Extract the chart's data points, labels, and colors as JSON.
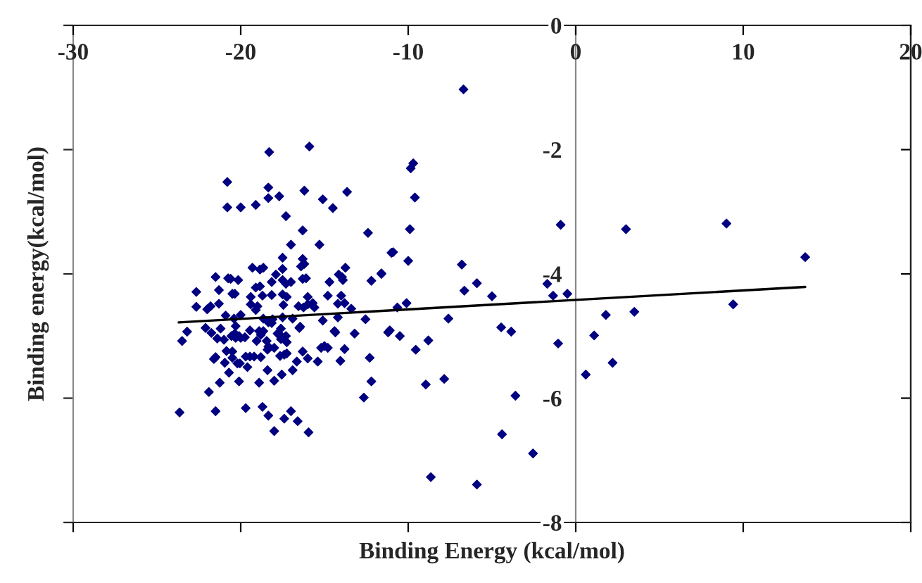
{
  "chart_data": {
    "type": "scatter",
    "xlabel": "Binding Energy (kcal/mol)",
    "ylabel": "Binding energy(kcal/mol)",
    "xlim": [
      -30,
      20
    ],
    "ylim": [
      -8,
      0
    ],
    "xticks": [
      {
        "value": -30,
        "label": "-30"
      },
      {
        "value": -20,
        "label": "-20"
      },
      {
        "value": -10,
        "label": "-10"
      },
      0,
      10,
      20
    ],
    "yticks": [
      {
        "value": -8,
        "label": "-8"
      },
      {
        "value": -6,
        "label": "-6"
      },
      {
        "value": -4,
        "label": "-4"
      },
      {
        "value": -2,
        "label": "-2"
      },
      0
    ],
    "grid": false,
    "marker": "diamond",
    "series": [
      {
        "color": "#000080",
        "x": [
          -6.7,
          -9.7,
          -9.85,
          -9.6,
          -9.9,
          -0.9,
          3.0,
          9.0,
          13.7,
          -10.9,
          -10.0,
          -6.8,
          -11.6,
          -6.65,
          -5.9,
          -5.0,
          -1.7,
          -1.35,
          -0.5,
          -10.65,
          -10.1,
          -7.6,
          -11.2,
          -11.1,
          -10.5,
          -9.55,
          -8.8,
          -4.45,
          -3.85,
          -1.05,
          1.8,
          3.5,
          9.4,
          1.1,
          2.2,
          0.6,
          -8.95,
          -7.85,
          -3.6,
          -4.4,
          -2.55,
          -8.65,
          -5.9,
          -18.3,
          -15.9,
          -20.8,
          -18.35,
          -16.2,
          -13.65,
          -17.7,
          -15.1,
          -20.8,
          -20.0,
          -19.1,
          -18.35,
          -14.5,
          -17.3,
          -16.3,
          -12.4,
          -17.0,
          -15.3,
          -11.0,
          -17.5,
          -16.3,
          -16.2,
          -16.4,
          -19.3,
          -18.85,
          -18.65,
          -17.5,
          -17.9,
          -13.75,
          -11.6,
          -21.5,
          -20.75,
          -20.6,
          -20.15,
          -18.15,
          -17.5,
          -17.3,
          -17.0,
          -16.3,
          -16.1,
          -14.15,
          -13.95,
          -13.9,
          -14.7,
          -12.2,
          -18.85,
          -19.1,
          -21.3,
          -22.65,
          -20.5,
          -20.35,
          -19.4,
          -18.7,
          -18.15,
          -17.5,
          -17.25,
          -16.0,
          -14.8,
          -14.0,
          -22.65,
          -22.0,
          -21.8,
          -21.3,
          -19.4,
          -19.0,
          -17.45,
          -16.55,
          -16.25,
          -16.0,
          -15.7,
          -15.6,
          -14.2,
          -13.4,
          -13.8,
          -19.1,
          -20.9,
          -20.4,
          -20.0,
          -18.65,
          -18.1,
          -17.5,
          -16.9,
          -15.1,
          -14.2,
          -12.55,
          -23.2,
          -22.1,
          -21.2,
          -20.35,
          -20.1,
          -18.9,
          -17.8,
          -16.5,
          -14.4,
          -13.2,
          -23.5,
          -21.75,
          -21.4,
          -21.0,
          -20.3,
          -20.55,
          -20.3,
          -20.0,
          -19.75,
          -19.45,
          -19.05,
          -18.8,
          -18.65,
          -18.35,
          -18.15,
          -18.45,
          -18.35,
          -18.0,
          -17.6,
          -17.65,
          -17.6,
          -17.3,
          -17.25,
          -16.45,
          -14.35,
          -20.85,
          -20.5,
          -21.6,
          -21.5,
          -20.95,
          -20.5,
          -20.2,
          -20.05,
          -19.7,
          -19.45,
          -19.2,
          -19.6,
          -18.8,
          -18.4,
          -17.65,
          -17.4,
          -17.25,
          -16.9,
          -16.65,
          -16.3,
          -16.0,
          -15.4,
          -15.2,
          -15.0,
          -14.8,
          -13.8,
          -14.05,
          -20.7,
          -18.4,
          -17.55,
          -21.25,
          -20.1,
          -18.9,
          -18.0,
          -21.9,
          -23.65,
          -21.5,
          -19.7,
          -18.7,
          -18.35,
          -17.0,
          -17.4,
          -16.6,
          -18.0,
          -15.95,
          -12.3,
          -12.2,
          -12.65
        ],
        "values": [
          -1.03,
          -2.22,
          -2.3,
          -2.77,
          -3.28,
          -3.21,
          -3.28,
          -3.19,
          -3.73,
          -3.65,
          -3.79,
          -3.85,
          -3.99,
          -4.27,
          -4.15,
          -4.36,
          -4.16,
          -4.35,
          -4.32,
          -4.54,
          -4.47,
          -4.72,
          -4.94,
          -4.91,
          -5.0,
          -5.22,
          -5.07,
          -4.86,
          -4.93,
          -5.12,
          -4.66,
          -4.61,
          -4.49,
          -4.99,
          -5.43,
          -5.62,
          -5.78,
          -5.69,
          -5.96,
          -6.58,
          -6.89,
          -7.27,
          -7.39,
          -2.04,
          -1.95,
          -2.52,
          -2.61,
          -2.66,
          -2.68,
          -2.75,
          -2.8,
          -2.93,
          -2.93,
          -2.89,
          -2.78,
          -2.94,
          -3.07,
          -3.3,
          -3.34,
          -3.53,
          -3.53,
          -3.66,
          -3.74,
          -3.76,
          -3.84,
          -3.88,
          -3.9,
          -3.93,
          -3.9,
          -3.92,
          -4.01,
          -3.9,
          -4.0,
          -4.05,
          -4.07,
          -4.08,
          -4.1,
          -4.13,
          -4.1,
          -4.16,
          -4.13,
          -4.08,
          -4.07,
          -4.01,
          -4.05,
          -4.1,
          -4.13,
          -4.11,
          -4.2,
          -4.22,
          -4.26,
          -4.29,
          -4.32,
          -4.32,
          -4.37,
          -4.35,
          -4.34,
          -4.33,
          -4.37,
          -4.37,
          -4.35,
          -4.35,
          -4.53,
          -4.57,
          -4.52,
          -4.48,
          -4.49,
          -4.52,
          -4.5,
          -4.52,
          -4.54,
          -4.49,
          -4.47,
          -4.54,
          -4.48,
          -4.56,
          -4.47,
          -4.58,
          -4.67,
          -4.72,
          -4.66,
          -4.72,
          -4.73,
          -4.7,
          -4.72,
          -4.75,
          -4.7,
          -4.73,
          -4.93,
          -4.87,
          -4.88,
          -4.96,
          -5.0,
          -4.92,
          -4.96,
          -4.87,
          -4.92,
          -4.96,
          -5.08,
          -4.95,
          -5.04,
          -5.06,
          -4.84,
          -5.0,
          -5.03,
          -5.03,
          -5.02,
          -4.91,
          -5.08,
          -4.98,
          -4.92,
          -4.78,
          -4.79,
          -5.08,
          -5.17,
          -5.19,
          -4.88,
          -4.98,
          -5.05,
          -5.0,
          -5.1,
          -4.85,
          -4.94,
          -5.24,
          -5.25,
          -5.37,
          -5.34,
          -5.43,
          -5.35,
          -5.44,
          -5.44,
          -5.33,
          -5.33,
          -5.33,
          -5.5,
          -5.34,
          -5.22,
          -5.32,
          -5.3,
          -5.28,
          -5.55,
          -5.41,
          -5.25,
          -5.36,
          -5.41,
          -5.19,
          -5.16,
          -5.19,
          -5.21,
          -5.4,
          -5.59,
          -5.55,
          -5.62,
          -5.75,
          -5.73,
          -5.75,
          -5.72,
          -5.9,
          -6.23,
          -6.21,
          -6.16,
          -6.14,
          -6.28,
          -6.21,
          -6.33,
          -6.37,
          -6.53,
          -6.55,
          -5.35,
          -5.73,
          -5.99
        ]
      },
      {
        "type": "line",
        "color": "#000000",
        "marker": "none",
        "line_style": "solid",
        "x": [
          -23.7,
          13.7
        ],
        "values": [
          -4.78,
          -4.21
        ]
      }
    ]
  }
}
